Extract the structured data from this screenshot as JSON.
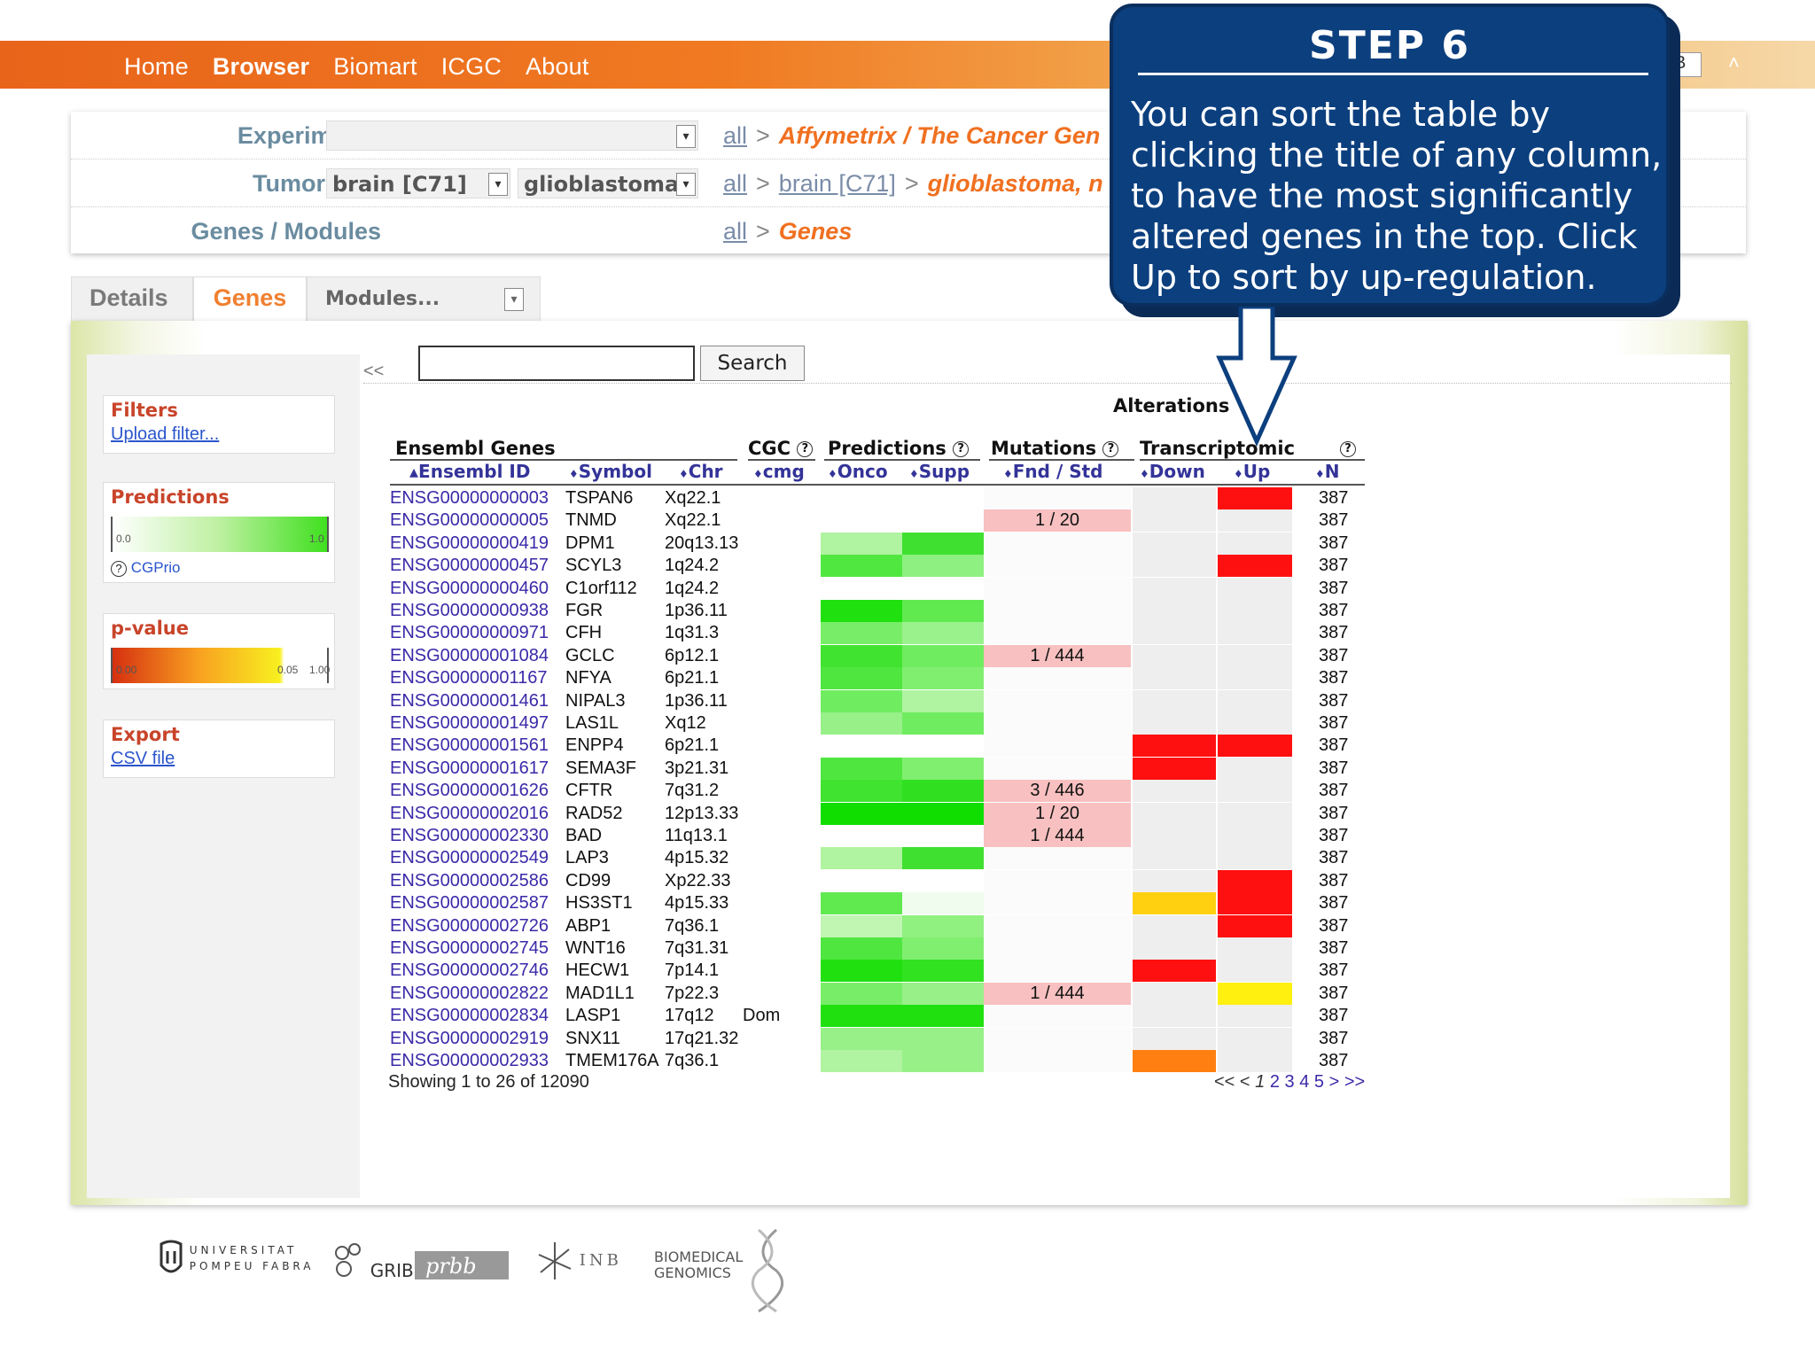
{
  "topbar": {
    "nav": [
      "Home",
      "Browser",
      "Biomart",
      "ICGC",
      "About"
    ],
    "active": "Browser",
    "user_select_value": "B",
    "collapse_glyph": "˄"
  },
  "header": {
    "experiments": {
      "label": "Experiments",
      "select_value": "",
      "all": "all",
      "sep": ">",
      "current": "Affymetrix / The Cancer Gen"
    },
    "tumor_type": {
      "label": "Tumor type",
      "select1_value": "brain [C71]",
      "select2_value": "glioblastoma,",
      "all": "all",
      "sep": ">",
      "mid": "brain [C71]",
      "current": "glioblastoma, n"
    },
    "genes_modules": {
      "label": "Genes / Modules",
      "all": "all",
      "sep": ">",
      "current": "Genes"
    }
  },
  "tabs": {
    "details": "Details",
    "genes": "Genes",
    "modules_select": "Modules..."
  },
  "sidebar": {
    "collapse": "<<",
    "filters": {
      "title": "Filters",
      "link": "Upload filter..."
    },
    "predictions": {
      "title": "Predictions",
      "min": "0.0",
      "max": "1.0",
      "help": "?",
      "link": "CGPrio"
    },
    "pvalue": {
      "title": "p-value",
      "t0": "0.00",
      "t1": "0.05",
      "t2": "1.00"
    },
    "export": {
      "title": "Export",
      "link": "CSV file"
    }
  },
  "search": {
    "value": "",
    "button": "Search"
  },
  "table": {
    "group_headers": {
      "ensembl": "Ensembl Genes",
      "cgc": "CGC",
      "predictions": "Predictions",
      "mutations": "Mutations",
      "alterations": "Alterations",
      "transcriptomic": "Transcriptomic"
    },
    "columns": {
      "id": "Ensembl ID",
      "symbol": "Symbol",
      "chr": "Chr",
      "cmg": "cmg",
      "onco": "Onco",
      "supp": "Supp",
      "fnd": "Fnd / Std",
      "down": "Down",
      "up": "Up",
      "n": "N"
    },
    "sort_glyph_active": "▴",
    "sort_glyph": "♦",
    "help_glyph": "?",
    "rows": [
      {
        "id": "ENSG00000000003",
        "sym": "TSPAN6",
        "chr": "Xq22.1",
        "cmg": "",
        "onco": "#ffffff",
        "supp": "#ffffff",
        "mut": "",
        "down": "#eeeeee",
        "up": "#ff1010",
        "n": "387"
      },
      {
        "id": "ENSG00000000005",
        "sym": "TNMD",
        "chr": "Xq22.1",
        "cmg": "",
        "onco": "#ffffff",
        "supp": "#ffffff",
        "mut": "1 / 20",
        "down": "#eeeeee",
        "up": "#eeeeee",
        "n": "387"
      },
      {
        "id": "ENSG00000000419",
        "sym": "DPM1",
        "chr": "20q13.13",
        "cmg": "",
        "onco": "#b0f3a0",
        "supp": "#40e030",
        "mut": "",
        "down": "#eeeeee",
        "up": "#eeeeee",
        "n": "387"
      },
      {
        "id": "ENSG00000000457",
        "sym": "SCYL3",
        "chr": "1q24.2",
        "cmg": "",
        "onco": "#50e840",
        "supp": "#8ef080",
        "mut": "",
        "down": "#eeeeee",
        "up": "#ff1010",
        "n": "387"
      },
      {
        "id": "ENSG00000000460",
        "sym": "C1orf112",
        "chr": "1q24.2",
        "cmg": "",
        "onco": "#ffffff",
        "supp": "#ffffff",
        "mut": "",
        "down": "#eeeeee",
        "up": "#eeeeee",
        "n": "387"
      },
      {
        "id": "ENSG00000000938",
        "sym": "FGR",
        "chr": "1p36.11",
        "cmg": "",
        "onco": "#20e010",
        "supp": "#60ea50",
        "mut": "",
        "down": "#eeeeee",
        "up": "#eeeeee",
        "n": "387"
      },
      {
        "id": "ENSG00000000971",
        "sym": "CFH",
        "chr": "1q31.3",
        "cmg": "",
        "onco": "#78ee68",
        "supp": "#9af28c",
        "mut": "",
        "down": "#eeeeee",
        "up": "#eeeeee",
        "n": "387"
      },
      {
        "id": "ENSG00000001084",
        "sym": "GCLC",
        "chr": "6p12.1",
        "cmg": "",
        "onco": "#40e430",
        "supp": "#70ec60",
        "mut": "1 / 444",
        "down": "#eeeeee",
        "up": "#eeeeee",
        "n": "387"
      },
      {
        "id": "ENSG00000001167",
        "sym": "NFYA",
        "chr": "6p21.1",
        "cmg": "",
        "onco": "#50e640",
        "supp": "#80ef70",
        "mut": "",
        "down": "#eeeeee",
        "up": "#eeeeee",
        "n": "387"
      },
      {
        "id": "ENSG00000001461",
        "sym": "NIPAL3",
        "chr": "1p36.11",
        "cmg": "",
        "onco": "#70ec60",
        "supp": "#b0f3a0",
        "mut": "",
        "down": "#eeeeee",
        "up": "#eeeeee",
        "n": "387"
      },
      {
        "id": "ENSG00000001497",
        "sym": "LAS1L",
        "chr": "Xq12",
        "cmg": "",
        "onco": "#98f088",
        "supp": "#70ec60",
        "mut": "",
        "down": "#eeeeee",
        "up": "#eeeeee",
        "n": "387"
      },
      {
        "id": "ENSG00000001561",
        "sym": "ENPP4",
        "chr": "6p21.1",
        "cmg": "",
        "onco": "#ffffff",
        "supp": "#ffffff",
        "mut": "",
        "down": "#ff1010",
        "up": "#ff1010",
        "n": "387"
      },
      {
        "id": "ENSG00000001617",
        "sym": "SEMA3F",
        "chr": "3p21.31",
        "cmg": "",
        "onco": "#50e640",
        "supp": "#80ef70",
        "mut": "",
        "down": "#ff1010",
        "up": "#eeeeee",
        "n": "387"
      },
      {
        "id": "ENSG00000001626",
        "sym": "CFTR",
        "chr": "7q31.2",
        "cmg": "",
        "onco": "#40e430",
        "supp": "#30e020",
        "mut": "3 / 446",
        "down": "#eeeeee",
        "up": "#eeeeee",
        "n": "387"
      },
      {
        "id": "ENSG00000002016",
        "sym": "RAD52",
        "chr": "12p13.33",
        "cmg": "",
        "onco": "#10de00",
        "supp": "#10de00",
        "mut": "1 / 20",
        "down": "#eeeeee",
        "up": "#eeeeee",
        "n": "387"
      },
      {
        "id": "ENSG00000002330",
        "sym": "BAD",
        "chr": "11q13.1",
        "cmg": "",
        "onco": "#ffffff",
        "supp": "#ffffff",
        "mut": "1 / 444",
        "down": "#eeeeee",
        "up": "#eeeeee",
        "n": "387"
      },
      {
        "id": "ENSG00000002549",
        "sym": "LAP3",
        "chr": "4p15.32",
        "cmg": "",
        "onco": "#b0f3a0",
        "supp": "#40e030",
        "mut": "",
        "down": "#eeeeee",
        "up": "#eeeeee",
        "n": "387"
      },
      {
        "id": "ENSG00000002586",
        "sym": "CD99",
        "chr": "Xp22.33",
        "cmg": "",
        "onco": "#ffffff",
        "supp": "#ffffff",
        "mut": "",
        "down": "#eeeeee",
        "up": "#ff1010",
        "n": "387"
      },
      {
        "id": "ENSG00000002587",
        "sym": "HS3ST1",
        "chr": "4p15.33",
        "cmg": "",
        "onco": "#60ea50",
        "supp": "#f0fcee",
        "mut": "",
        "down": "#ffd010",
        "up": "#ff1010",
        "n": "387"
      },
      {
        "id": "ENSG00000002726",
        "sym": "ABP1",
        "chr": "7q36.1",
        "cmg": "",
        "onco": "#c0f5b2",
        "supp": "#90f080",
        "mut": "",
        "down": "#eeeeee",
        "up": "#ff1010",
        "n": "387"
      },
      {
        "id": "ENSG00000002745",
        "sym": "WNT16",
        "chr": "7q31.31",
        "cmg": "",
        "onco": "#50e640",
        "supp": "#80ef70",
        "mut": "",
        "down": "#eeeeee",
        "up": "#eeeeee",
        "n": "387"
      },
      {
        "id": "ENSG00000002746",
        "sym": "HECW1",
        "chr": "7p14.1",
        "cmg": "",
        "onco": "#20e010",
        "supp": "#30e220",
        "mut": "",
        "down": "#ff1010",
        "up": "#eeeeee",
        "n": "387"
      },
      {
        "id": "ENSG00000002822",
        "sym": "MAD1L1",
        "chr": "7p22.3",
        "cmg": "",
        "onco": "#78ee68",
        "supp": "#98f088",
        "mut": "1 / 444",
        "down": "#eeeeee",
        "up": "#fff010",
        "n": "387"
      },
      {
        "id": "ENSG00000002834",
        "sym": "LASP1",
        "chr": "17q12",
        "cmg": "Dom",
        "onco": "#20e010",
        "supp": "#20e010",
        "mut": "",
        "down": "#eeeeee",
        "up": "#eeeeee",
        "n": "387"
      },
      {
        "id": "ENSG00000002919",
        "sym": "SNX11",
        "chr": "17q21.32",
        "cmg": "",
        "onco": "#98f088",
        "supp": "#98f088",
        "mut": "",
        "down": "#eeeeee",
        "up": "#eeeeee",
        "n": "387"
      },
      {
        "id": "ENSG00000002933",
        "sym": "TMEM176A",
        "chr": "7q36.1",
        "cmg": "",
        "onco": "#b0f3a0",
        "supp": "#98f088",
        "mut": "",
        "down": "#ff8010",
        "up": "#eeeeee",
        "n": "387"
      }
    ],
    "showing": "Showing 1 to 26 of 12090",
    "pager": {
      "first": "<<",
      "prev": "<",
      "current": "1",
      "pages": [
        "2",
        "3",
        "4",
        "5"
      ],
      "next": ">",
      "last": ">>"
    }
  },
  "logos": {
    "upf": "UNIVERSITAT POMPEU FABRA",
    "grib": "GRIB",
    "inb": "INB",
    "bg": "BIOMEDICAL GENOMICS"
  },
  "step": {
    "title": "STEP 6",
    "body": "You can sort the table by clicking the title of any column, to have the most significantly altered genes in the top. Click Up to sort by up-regulation."
  },
  "colors": {
    "accent": "#f07020",
    "mutation_bg": "#f8c0c0",
    "step_bg": "#0c3f7e"
  }
}
